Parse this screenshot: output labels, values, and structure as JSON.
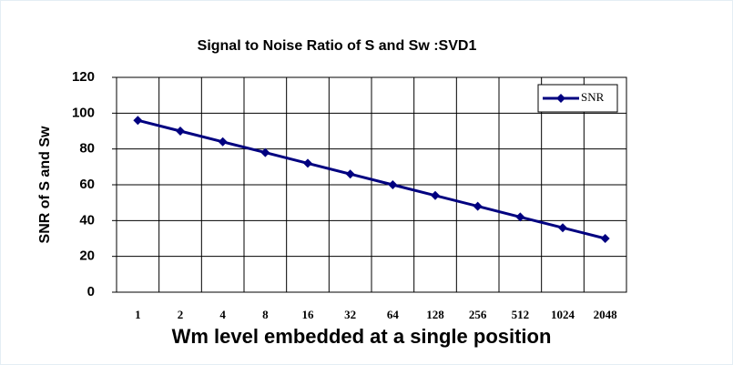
{
  "chart_data": {
    "type": "line",
    "title": "Signal to Noise Ratio of S and Sw :SVD1",
    "x_label": "Wm level embedded at a single position",
    "y_label": "SNR of S and Sw",
    "categories": [
      "1",
      "2",
      "4",
      "8",
      "16",
      "32",
      "64",
      "128",
      "256",
      "512",
      "1024",
      "2048"
    ],
    "series": [
      {
        "name": "SNR",
        "color": "#000080",
        "values": [
          96,
          90,
          84,
          78,
          72,
          66,
          60,
          54,
          48,
          42,
          36,
          30
        ]
      }
    ],
    "ylim": [
      0,
      120
    ],
    "yticks": [
      0,
      20,
      40,
      60,
      80,
      100,
      120
    ],
    "grid": true,
    "legend": "top-right"
  }
}
